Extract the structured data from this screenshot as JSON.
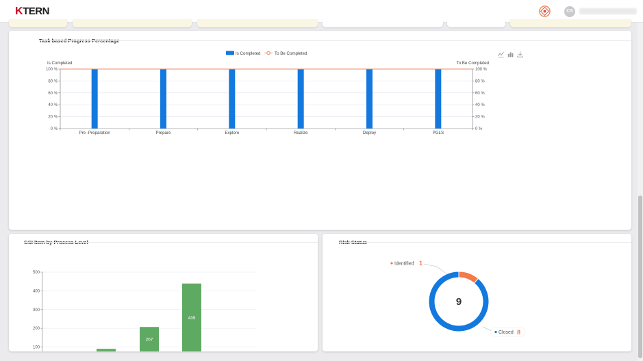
{
  "header": {
    "logo_text": "TERN",
    "logo_mark": "K",
    "avatar_initials": "CS"
  },
  "progress_card": {
    "title": "Task based Progress Percentage",
    "chart_data": {
      "type": "bar",
      "categories": [
        "Pre -Preparation",
        "Prepare",
        "Explore",
        "Realize",
        "Deploy",
        "PGLS"
      ],
      "series": [
        {
          "name": "Is Completed",
          "type": "bar",
          "axis": "left",
          "values": [
            100,
            100,
            100,
            100,
            100,
            100
          ],
          "color": "#1479de"
        },
        {
          "name": "To Be Completed",
          "type": "line",
          "axis": "right",
          "values": [
            100,
            100,
            100,
            100,
            100,
            100
          ],
          "color": "#f08a66"
        }
      ],
      "ylabel_left": "Is Completed",
      "ylabel_right": "To Be Completed",
      "yticks": [
        "0 %",
        "20 %",
        "40 %",
        "60 %",
        "80 %",
        "100 %"
      ],
      "ylim": [
        0,
        100
      ],
      "legend": "top-center",
      "grid": true
    },
    "toolbox": [
      "line-chart-icon",
      "bar-chart-icon",
      "download-icon"
    ]
  },
  "gsi_card": {
    "title": "GSI item by Process Level",
    "chart_data": {
      "type": "bar",
      "values": [
        90,
        207,
        439
      ],
      "labels": [
        "",
        "207",
        "439"
      ],
      "yticks": [
        "100",
        "200",
        "300",
        "400",
        "500"
      ],
      "ylim": [
        100,
        500
      ],
      "color": "#5faa62",
      "grid": true
    }
  },
  "risk_card": {
    "title": "Risk Status",
    "chart_data": {
      "type": "pie",
      "total": "9",
      "slices": [
        {
          "name": "Identified",
          "value": 1,
          "value_label": "1",
          "color": "#f47a48"
        },
        {
          "name": "Closed",
          "value": 8,
          "value_label": "8",
          "color": "#1479de"
        }
      ]
    }
  }
}
